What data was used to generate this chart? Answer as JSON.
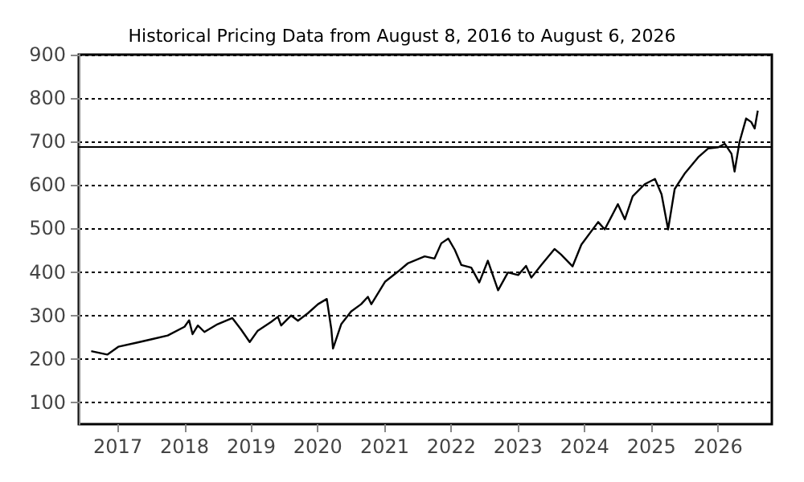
{
  "chart_data": {
    "type": "line",
    "title": "Historical Pricing Data from August 8, 2016 to August 6, 2026",
    "x": [
      "2016-08-08",
      "2016-11-04",
      "2017-01-03",
      "2017-04-20",
      "2017-07-01",
      "2017-10-01",
      "2018-01-01",
      "2018-01-26",
      "2018-02-14",
      "2018-03-15",
      "2018-04-20",
      "2018-07-01",
      "2018-09-20",
      "2018-11-06",
      "2018-12-24",
      "2019-02-06",
      "2019-04-20",
      "2019-05-27",
      "2019-06-14",
      "2019-08-08",
      "2019-09-14",
      "2019-11-07",
      "2020-01-02",
      "2020-02-19",
      "2020-03-15",
      "2020-03-24",
      "2020-05-08",
      "2020-07-01",
      "2020-08-25",
      "2020-10-01",
      "2020-10-20",
      "2021-01-04",
      "2021-03-15",
      "2021-05-08",
      "2021-08-08",
      "2021-10-01",
      "2021-11-07",
      "2021-12-15",
      "2022-01-20",
      "2022-02-25",
      "2022-04-20",
      "2022-06-03",
      "2022-07-20",
      "2022-09-14",
      "2022-11-07",
      "2023-01-02",
      "2023-02-14",
      "2023-03-15",
      "2023-05-08",
      "2023-07-20",
      "2023-08-25",
      "2023-10-27",
      "2023-12-14",
      "2024-03-15",
      "2024-04-20",
      "2024-07-01",
      "2024-08-08",
      "2024-09-20",
      "2024-11-25",
      "2025-01-20",
      "2025-02-25",
      "2025-04-02",
      "2025-05-08",
      "2025-07-01",
      "2025-09-14",
      "2025-11-07",
      "2026-01-02",
      "2026-02-06",
      "2026-03-15",
      "2026-04-01",
      "2026-04-28",
      "2026-06-03",
      "2026-07-01",
      "2026-07-20",
      "2026-08-06"
    ],
    "series": [
      {
        "color": "#000000",
        "values": [
          218,
          210,
          228,
          238,
          245,
          254,
          274,
          289,
          257,
          277,
          262,
          280,
          294,
          268,
          239,
          265,
          285,
          297,
          277,
          300,
          288,
          305,
          326,
          338,
          268,
          224,
          280,
          309,
          326,
          343,
          326,
          378,
          401,
          420,
          436,
          431,
          466,
          477,
          451,
          416,
          410,
          376,
          426,
          358,
          399,
          393,
          414,
          387,
          416,
          453,
          440,
          413,
          463,
          515,
          498,
          556,
          521,
          574,
          602,
          614,
          579,
          498,
          591,
          626,
          664,
          684,
          687,
          695,
          672,
          631,
          699,
          753,
          745,
          730,
          771
        ]
      }
    ],
    "xlim": [
      "2016-06-01",
      "2026-10-22"
    ],
    "xticks": [
      "2017",
      "2018",
      "2019",
      "2020",
      "2021",
      "2022",
      "2023",
      "2024",
      "2025",
      "2026"
    ],
    "ylim": [
      50,
      900
    ],
    "yticks": [
      100,
      200,
      300,
      400,
      500,
      600,
      700,
      800,
      900
    ],
    "grid": "y",
    "ref_lines": [
      {
        "axis": "y",
        "value": 690,
        "color": "#000000",
        "line_style": "solid"
      }
    ],
    "line_style": "solid",
    "marker": "none"
  }
}
